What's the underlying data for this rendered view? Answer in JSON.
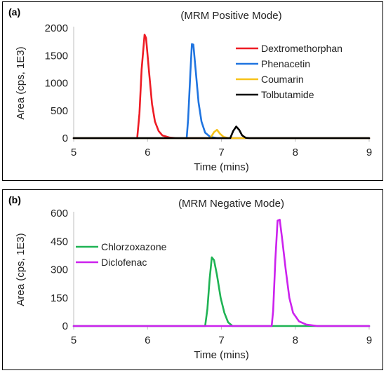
{
  "chart_data": [
    {
      "type": "line",
      "panel_label": "(a)",
      "title": "(MRM Positive Mode)",
      "xlabel": "Time (mins)",
      "ylabel": "Area (cps, 1E3)",
      "xlim": [
        5,
        9
      ],
      "ylim": [
        0,
        2000
      ],
      "xticks": [
        "5",
        "6",
        "7",
        "8",
        "9"
      ],
      "yticks": [
        "0",
        "500",
        "1000",
        "1500",
        "2000"
      ],
      "legend_position": "top-right",
      "series": [
        {
          "name": "Dextromethorphan",
          "color": "#ee1c25",
          "points": [
            [
              5,
              0
            ],
            [
              5.86,
              0
            ],
            [
              5.89,
              450
            ],
            [
              5.92,
              1250
            ],
            [
              5.96,
              1880
            ],
            [
              5.98,
              1820
            ],
            [
              6.02,
              1200
            ],
            [
              6.06,
              620
            ],
            [
              6.1,
              300
            ],
            [
              6.15,
              130
            ],
            [
              6.2,
              50
            ],
            [
              6.3,
              10
            ],
            [
              6.4,
              0
            ],
            [
              9,
              0
            ]
          ]
        },
        {
          "name": "Phenacetin",
          "color": "#1f74e0",
          "points": [
            [
              5,
              0
            ],
            [
              6.53,
              0
            ],
            [
              6.55,
              350
            ],
            [
              6.58,
              1200
            ],
            [
              6.6,
              1710
            ],
            [
              6.62,
              1700
            ],
            [
              6.65,
              1250
            ],
            [
              6.69,
              650
            ],
            [
              6.73,
              300
            ],
            [
              6.78,
              100
            ],
            [
              6.85,
              20
            ],
            [
              6.95,
              0
            ],
            [
              9,
              0
            ]
          ]
        },
        {
          "name": "Coumarin",
          "color": "#f7c21a",
          "points": [
            [
              5,
              0
            ],
            [
              6.85,
              0
            ],
            [
              6.9,
              110
            ],
            [
              6.94,
              150
            ],
            [
              6.98,
              80
            ],
            [
              7.03,
              20
            ],
            [
              7.1,
              0
            ],
            [
              9,
              0
            ]
          ]
        },
        {
          "name": "Tolbutamide",
          "color": "#000000",
          "points": [
            [
              5,
              0
            ],
            [
              7.12,
              0
            ],
            [
              7.16,
              130
            ],
            [
              7.2,
              210
            ],
            [
              7.24,
              150
            ],
            [
              7.28,
              50
            ],
            [
              7.33,
              5
            ],
            [
              7.38,
              0
            ],
            [
              9,
              0
            ]
          ]
        }
      ]
    },
    {
      "type": "line",
      "panel_label": "(b)",
      "title": "(MRM Negative Mode)",
      "xlabel": "Time (mins)",
      "ylabel": "Area (cps, 1E3)",
      "xlim": [
        5,
        9
      ],
      "ylim": [
        0,
        600
      ],
      "xticks": [
        "5",
        "6",
        "7",
        "8",
        "9"
      ],
      "yticks": [
        "0",
        "150",
        "300",
        "450",
        "600"
      ],
      "legend_position": "middle-left",
      "series": [
        {
          "name": "Chlorzoxazone",
          "color": "#1fb354",
          "points": [
            [
              5,
              0
            ],
            [
              6.78,
              0
            ],
            [
              6.81,
              90
            ],
            [
              6.84,
              250
            ],
            [
              6.87,
              365
            ],
            [
              6.9,
              350
            ],
            [
              6.94,
              270
            ],
            [
              6.99,
              150
            ],
            [
              7.04,
              70
            ],
            [
              7.09,
              20
            ],
            [
              7.15,
              0
            ],
            [
              9,
              0
            ]
          ]
        },
        {
          "name": "Diclofenac",
          "color": "#cc22ee",
          "points": [
            [
              5,
              0
            ],
            [
              7.68,
              0
            ],
            [
              7.7,
              80
            ],
            [
              7.73,
              350
            ],
            [
              7.76,
              560
            ],
            [
              7.79,
              565
            ],
            [
              7.82,
              470
            ],
            [
              7.87,
              300
            ],
            [
              7.92,
              150
            ],
            [
              7.97,
              70
            ],
            [
              8.05,
              25
            ],
            [
              8.15,
              8
            ],
            [
              8.3,
              0
            ],
            [
              9,
              0
            ]
          ]
        }
      ]
    }
  ]
}
